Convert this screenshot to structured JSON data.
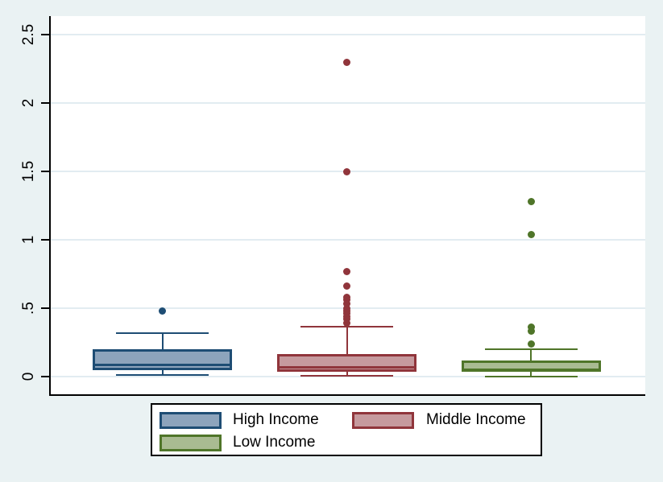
{
  "figure": {
    "background": "#eaf2f3",
    "plot_background": "#ffffff",
    "gridline_color": "#e2ecf1",
    "axis_color": "#000000",
    "title": ""
  },
  "chart_data": {
    "type": "box",
    "title": "",
    "xlabel": "",
    "ylabel": "",
    "ylim": [
      0,
      2.6
    ],
    "grid": true,
    "legend_position": "bottom-center",
    "yticks": [
      {
        "value": 0,
        "label": "0"
      },
      {
        "value": 0.5,
        "label": ".5"
      },
      {
        "value": 1,
        "label": "1"
      },
      {
        "value": 1.5,
        "label": "1.5"
      },
      {
        "value": 2,
        "label": "2"
      },
      {
        "value": 2.5,
        "label": "2.5"
      }
    ],
    "groups": [
      {
        "label": "High Income",
        "fill": "#8da4bc",
        "stroke": "#1e4d74",
        "whisker_low": 0.01,
        "q1": 0.047,
        "median": 0.09,
        "q3": 0.198,
        "whisker_high": 0.32,
        "outliers": [
          0.48
        ]
      },
      {
        "label": "Middle Income",
        "fill": "#c69a9e",
        "stroke": "#90353b",
        "whisker_low": 0.008,
        "q1": 0.037,
        "median": 0.07,
        "q3": 0.165,
        "whisker_high": 0.365,
        "outliers": [
          0.39,
          0.42,
          0.44,
          0.46,
          0.48,
          0.5,
          0.53,
          0.56,
          0.58,
          0.66,
          0.77,
          1.5,
          2.3
        ]
      },
      {
        "label": "Low Income",
        "fill": "#a9bb92",
        "stroke": "#4f7529",
        "whisker_low": 0.002,
        "q1": 0.034,
        "median": 0.053,
        "q3": 0.116,
        "whisker_high": 0.198,
        "outliers": [
          0.24,
          0.33,
          0.36,
          1.04,
          1.28
        ]
      }
    ]
  },
  "legend": {
    "background": "#ffffff",
    "border_color": "#000000"
  }
}
